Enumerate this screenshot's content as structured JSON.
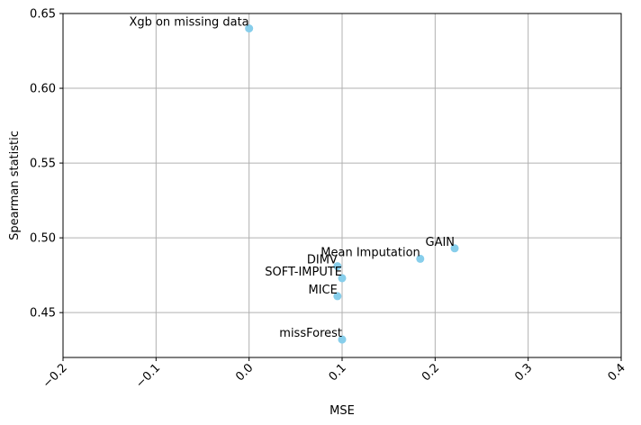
{
  "chart_data": {
    "type": "scatter",
    "title": "",
    "xlabel": "MSE",
    "ylabel": "Spearman statistic",
    "xlim": [
      -0.2,
      0.4
    ],
    "ylim": [
      0.42,
      0.65
    ],
    "xticks": [
      -0.2,
      -0.1,
      0.0,
      0.1,
      0.2,
      0.3,
      0.4
    ],
    "xtick_labels": [
      "−0.2",
      "−0.1",
      "0.0",
      "0.1",
      "0.2",
      "0.3",
      "0.4"
    ],
    "yticks": [
      0.45,
      0.5,
      0.55,
      0.6,
      0.65
    ],
    "ytick_labels": [
      "0.45",
      "0.50",
      "0.55",
      "0.60",
      "0.65"
    ],
    "grid": true,
    "marker_color": "#87ceeb",
    "points": [
      {
        "label": "Xgb on missing data",
        "x": 0.0,
        "y": 0.64
      },
      {
        "label": "GAIN",
        "x": 0.221,
        "y": 0.493
      },
      {
        "label": "Mean Imputation",
        "x": 0.184,
        "y": 0.486
      },
      {
        "label": "DIMV",
        "x": 0.095,
        "y": 0.481
      },
      {
        "label": "SOFT-IMPUTE",
        "x": 0.1,
        "y": 0.473
      },
      {
        "label": "MICE",
        "x": 0.095,
        "y": 0.461
      },
      {
        "label": "missForest",
        "x": 0.1,
        "y": 0.432
      }
    ]
  }
}
